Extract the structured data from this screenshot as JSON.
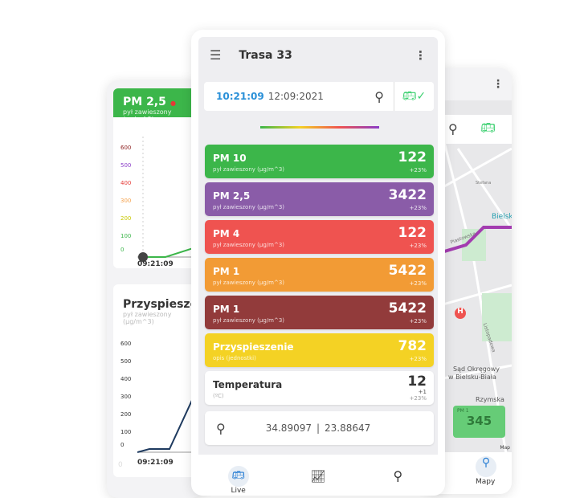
{
  "left_phone": {
    "card1": {
      "title": "PM 2,5",
      "subtitle": "pył zawieszony (µg/m^3)",
      "y_ticks": [
        "600",
        "500",
        "400",
        "300",
        "200",
        "100",
        "0"
      ],
      "tick_colors": [
        "#8b1a1a",
        "#8a3cc8",
        "#e53935",
        "#f5a04a",
        "#d4d400",
        "#3cb64a",
        "#3cb64a"
      ],
      "x_label": "09:21:09"
    },
    "card2": {
      "title": "Przyspieszenie",
      "subtitle": "pył zawieszony (µg/m^3)",
      "y_ticks": [
        "600",
        "500",
        "400",
        "300",
        "200",
        "100",
        "0"
      ],
      "x_label": "09:21:09",
      "corner": "0"
    }
  },
  "header": {
    "title": "Trasa 33"
  },
  "time_card": {
    "time": "10:21:09",
    "date": "12:09:2021"
  },
  "cards": [
    {
      "title": "PM 10",
      "subtitle": "pył zawieszony (µg/m^3)",
      "value": "122",
      "change": "+23%",
      "color": "#3cb64a"
    },
    {
      "title": "PM 2,5",
      "subtitle": "pył zawieszony (µg/m^3)",
      "value": "3422",
      "change": "+23%",
      "color": "#8a5ca8"
    },
    {
      "title": "PM 4",
      "subtitle": "pył zawieszony (µg/m^3)",
      "value": "122",
      "change": "+23%",
      "color": "#ef5350"
    },
    {
      "title": "PM 1",
      "subtitle": "pył zawieszony (µg/m^3)",
      "value": "5422",
      "change": "+23%",
      "color": "#f29b35"
    },
    {
      "title": "PM 1",
      "subtitle": "pył zawieszony (µg/m^3)",
      "value": "5422",
      "change": "+23%",
      "color": "#923b3b"
    },
    {
      "title": "Przyspieszenie",
      "subtitle": "opis (jednostki)",
      "value": "782",
      "change": "+23%",
      "color": "#f4d224"
    }
  ],
  "temperature": {
    "title": "Temperatura",
    "unit": "(ºC)",
    "value": "12",
    "change": "+1",
    "change2": "+23%"
  },
  "coords": {
    "lat": "34.89097",
    "sep": "|",
    "lon": "23.88647"
  },
  "nav": {
    "live": "Live",
    "maps": "Mapy"
  },
  "map": {
    "labels": [
      "Bielsk",
      "Piastowska",
      "Sąd Okręgowy",
      "w Bielsku-Biała",
      "Rzymska",
      "Stefana",
      "Listopadowa"
    ],
    "overlay_title": "PM 1",
    "overlay_value": "345",
    "attribution": "Map"
  }
}
